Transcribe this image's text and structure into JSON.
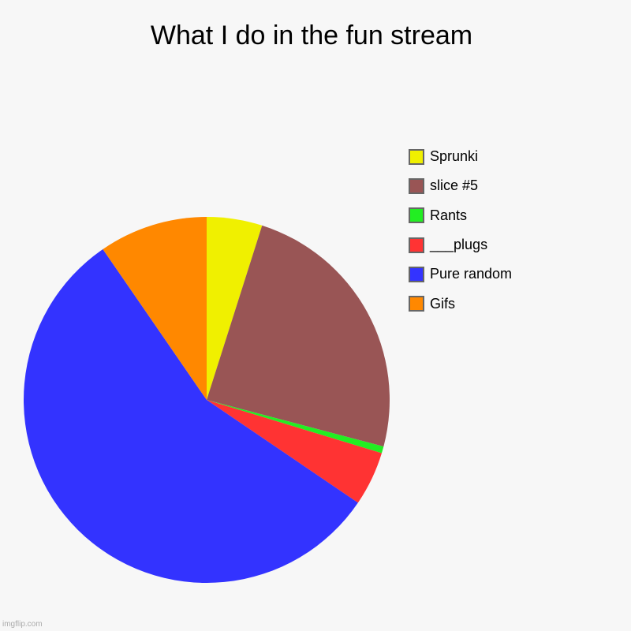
{
  "chart_data": {
    "type": "pie",
    "title": "What I do in the fun stream",
    "legend_position": "right",
    "start": "top, clockwise",
    "slices": [
      {
        "name": "Sprunki",
        "value": 4.9,
        "color": "#f0f000"
      },
      {
        "name": "slice #5",
        "value": 24.2,
        "color": "#995555"
      },
      {
        "name": "Rants",
        "value": 0.6,
        "color": "#22ee22"
      },
      {
        "name": "___plugs",
        "value": 4.8,
        "color": "#ff3333"
      },
      {
        "name": "Pure random",
        "value": 55.9,
        "color": "#3333ff"
      },
      {
        "name": "Gifs",
        "value": 9.6,
        "color": "#ff8800"
      }
    ]
  },
  "watermark": "imgflip.com"
}
